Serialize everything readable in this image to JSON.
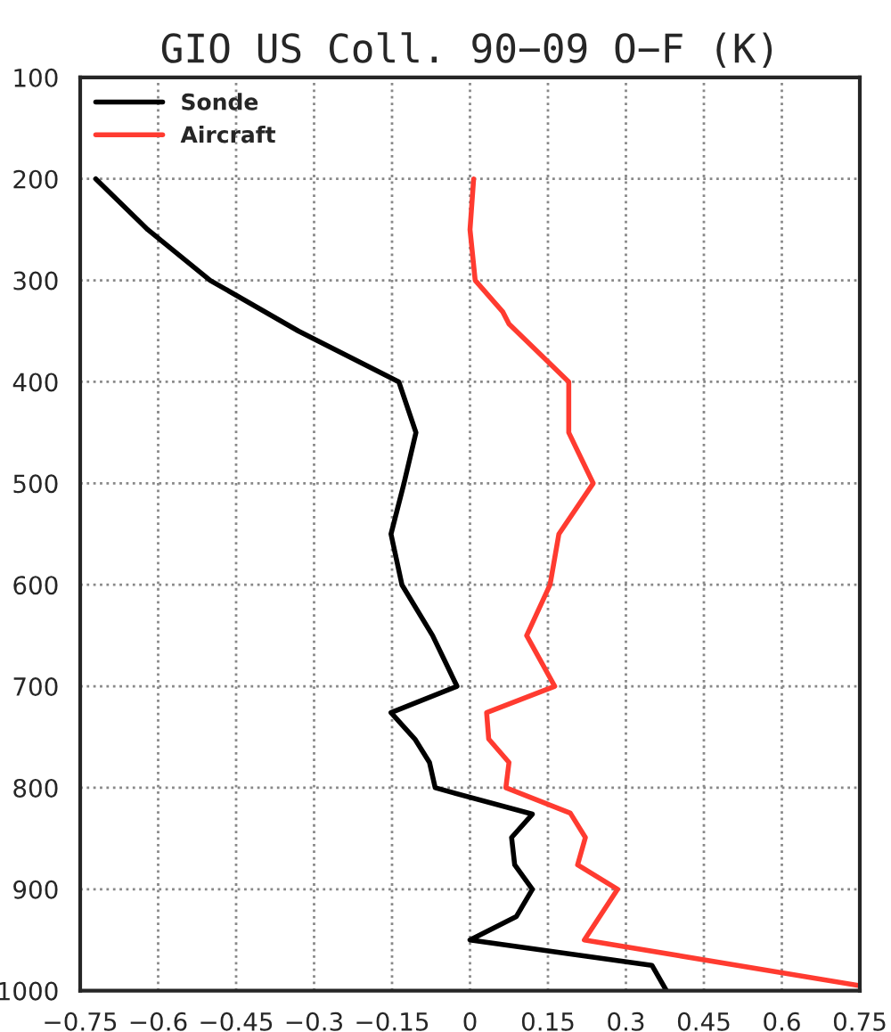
{
  "chart_data": {
    "type": "line",
    "title": "GIO US Coll. 90−09 O−F (K)",
    "series": [
      {
        "name": "Sonde",
        "color": "#000000",
        "x": [
          -0.72,
          -0.62,
          -0.5,
          -0.33,
          -0.137,
          -0.104,
          -0.127,
          -0.152,
          -0.131,
          -0.072,
          -0.025,
          -0.152,
          -0.106,
          -0.078,
          -0.067,
          0.12,
          0.08,
          0.086,
          0.12,
          0.089,
          0.0,
          0.35,
          0.378
        ],
        "values": [
          200,
          250,
          300,
          350,
          400,
          450,
          500,
          550,
          600,
          650,
          700,
          726,
          752,
          775,
          800,
          826,
          849,
          876,
          900,
          927,
          950,
          975,
          1000
        ]
      },
      {
        "name": "Aircraft",
        "color": "#ff3b30",
        "x": [
          0.007,
          0.0,
          0.01,
          0.063,
          0.075,
          0.19,
          0.19,
          0.237,
          0.171,
          0.154,
          0.109,
          0.163,
          0.032,
          0.036,
          0.075,
          0.069,
          0.193,
          0.222,
          0.207,
          0.284,
          0.22,
          0.75
        ],
        "values": [
          200,
          250,
          300,
          331,
          343,
          400,
          450,
          500,
          550,
          600,
          650,
          700,
          726,
          752,
          775,
          800,
          825,
          849,
          876,
          900,
          950,
          995
        ]
      }
    ],
    "xlim": [
      -0.75,
      0.75
    ],
    "xticks": [
      {
        "value": -0.75,
        "label": "−0.75"
      },
      {
        "value": -0.6,
        "label": "−0.6"
      },
      {
        "value": -0.45,
        "label": "−0.45"
      },
      {
        "value": -0.3,
        "label": "−0.3"
      },
      {
        "value": -0.15,
        "label": "−0.15"
      },
      0,
      0.15,
      0.3,
      0.45,
      0.6,
      0.75
    ],
    "ylim": [
      1000,
      100
    ],
    "yticks": [
      100,
      200,
      300,
      400,
      500,
      600,
      700,
      800,
      900,
      1000
    ],
    "grid": true,
    "legend": "top left",
    "line_style": "solid",
    "marker": "none"
  }
}
